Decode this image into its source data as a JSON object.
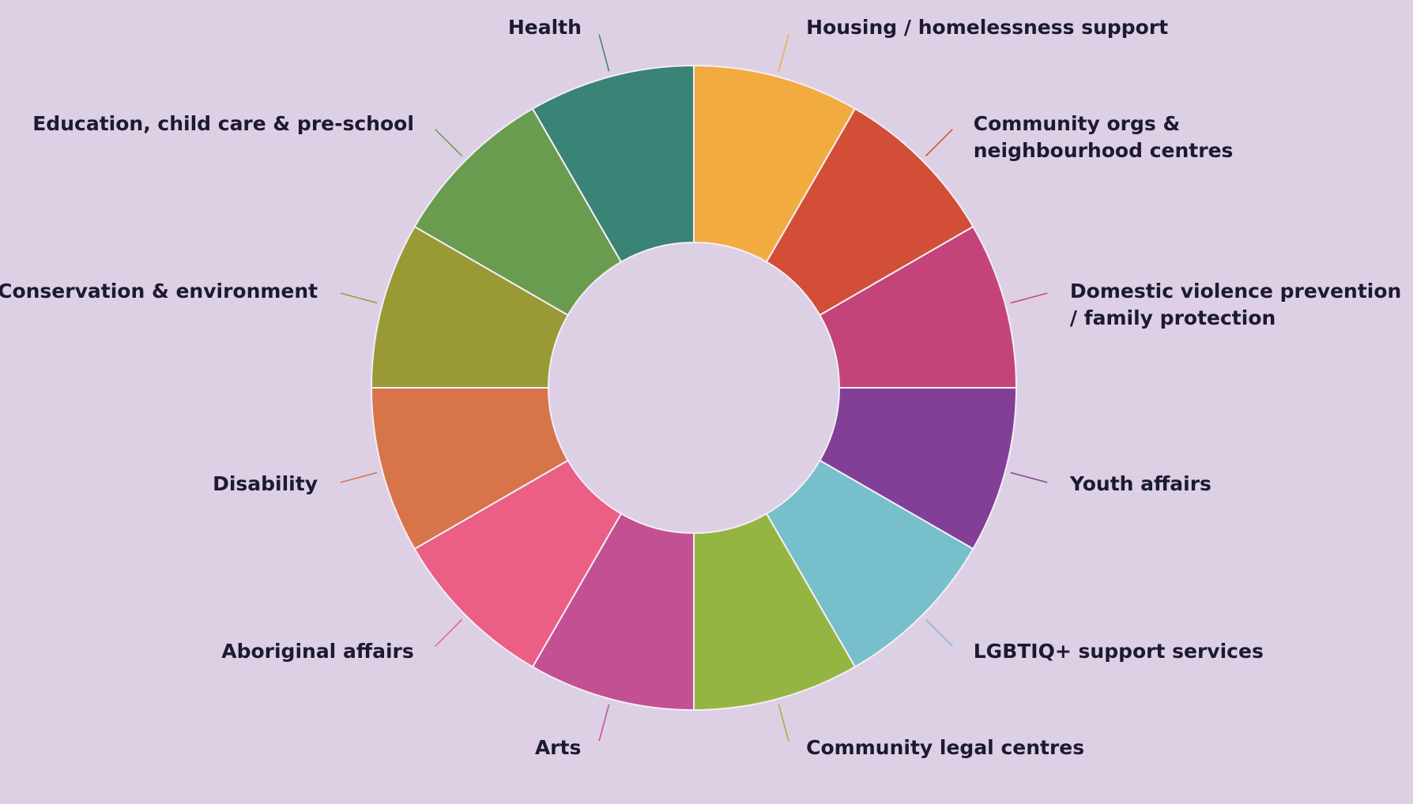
{
  "chart_data": {
    "type": "pie",
    "donut": true,
    "legend": "labels around ring with leader lines",
    "slices": [
      {
        "label": "Housing / homelessness support",
        "value": 1,
        "color": "#f2ab3f"
      },
      {
        "label": "Community orgs &\nneighbourhood centres",
        "value": 1,
        "color": "#d24e37"
      },
      {
        "label": "Domestic violence prevention\n/ family protection",
        "value": 1,
        "color": "#c4447a"
      },
      {
        "label": "Youth affairs",
        "value": 1,
        "color": "#833f97"
      },
      {
        "label": "LGBTIQ+ support services",
        "value": 1,
        "color": "#76bfcb"
      },
      {
        "label": "Community legal centres",
        "value": 1,
        "color": "#94b542"
      },
      {
        "label": "Arts",
        "value": 1,
        "color": "#c35093"
      },
      {
        "label": "Aboriginal affairs",
        "value": 1,
        "color": "#eb5e86"
      },
      {
        "label": "Disability",
        "value": 1,
        "color": "#d8744a"
      },
      {
        "label": "Conservation & environment",
        "value": 1,
        "color": "#999935"
      },
      {
        "label": "Education, child care & pre-school",
        "value": 1,
        "color": "#6a9c4f"
      },
      {
        "label": "Health",
        "value": 1,
        "color": "#398377"
      }
    ]
  }
}
